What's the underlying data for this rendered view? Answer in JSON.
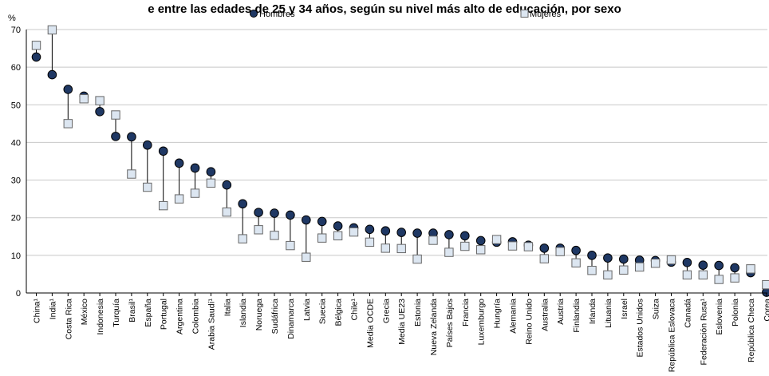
{
  "chart_data": {
    "type": "scatter",
    "title": "e entre las edades de 25 y 34 años, según su nivel más alto de educación, por sexo",
    "ylabel": "%",
    "ylim": [
      0,
      70
    ],
    "yticks": [
      0,
      10,
      20,
      30,
      40,
      50,
      60,
      70
    ],
    "grid": true,
    "legend_position": "top",
    "categories": [
      "China¹",
      "India¹",
      "Costa Rica",
      "México",
      "Indonesia",
      "Turquía",
      "Brasil¹",
      "España",
      "Portugal",
      "Argentina",
      "Colombia",
      "Arabia Saudí¹",
      "Italia",
      "Islandia",
      "Noruega",
      "Sudáfrica",
      "Dinamarca",
      "Latvia",
      "Suecia",
      "Bélgica",
      "Chile¹",
      "Media OCDE",
      "Grecia",
      "Media UE23",
      "Estonia",
      "Nueva Zelanda",
      "Países Bajos",
      "Francia",
      "Luxemburgo",
      "Hungría",
      "Alemania",
      "Reino Unido",
      "Australia",
      "Austria",
      "Finlandia",
      "Irlanda",
      "Lituania",
      "Israel",
      "Estados Unidos",
      "Suiza",
      "República Eslovaca",
      "Canadá",
      "Federación Rusa¹",
      "Eslovenia",
      "Polonia",
      "República Checa",
      "Corea"
    ],
    "series": [
      {
        "name": "Hombres",
        "marker": "circle",
        "color": "#1f3864",
        "values": [
          62.7,
          58.0,
          54.1,
          52.3,
          48.2,
          41.6,
          41.5,
          39.3,
          37.7,
          34.5,
          33.2,
          32.2,
          28.7,
          23.7,
          21.4,
          21.2,
          20.7,
          19.4,
          19.0,
          17.8,
          17.3,
          16.9,
          16.5,
          16.1,
          15.9,
          15.9,
          15.5,
          15.2,
          13.9,
          13.5,
          13.6,
          12.7,
          11.9,
          11.9,
          11.3,
          10.0,
          9.3,
          9.0,
          8.7,
          8.6,
          8.2,
          8.1,
          7.4,
          7.3,
          6.7,
          5.4,
          0.2
        ]
      },
      {
        "name": "Mujeres",
        "marker": "square",
        "color": "#dce6f1",
        "values": [
          65.8,
          69.9,
          45.0,
          51.6,
          51.1,
          47.3,
          31.6,
          28.1,
          23.2,
          25.0,
          26.5,
          29.2,
          21.5,
          14.4,
          16.8,
          15.3,
          12.6,
          9.5,
          14.6,
          15.2,
          16.2,
          13.5,
          11.9,
          11.8,
          9.0,
          14.0,
          10.8,
          12.4,
          11.5,
          14.2,
          12.5,
          12.3,
          9.1,
          11.0,
          8.0,
          6.0,
          4.8,
          6.1,
          6.9,
          7.9,
          8.8,
          4.8,
          4.8,
          3.6,
          4.0,
          6.4,
          2.2
        ]
      }
    ]
  }
}
